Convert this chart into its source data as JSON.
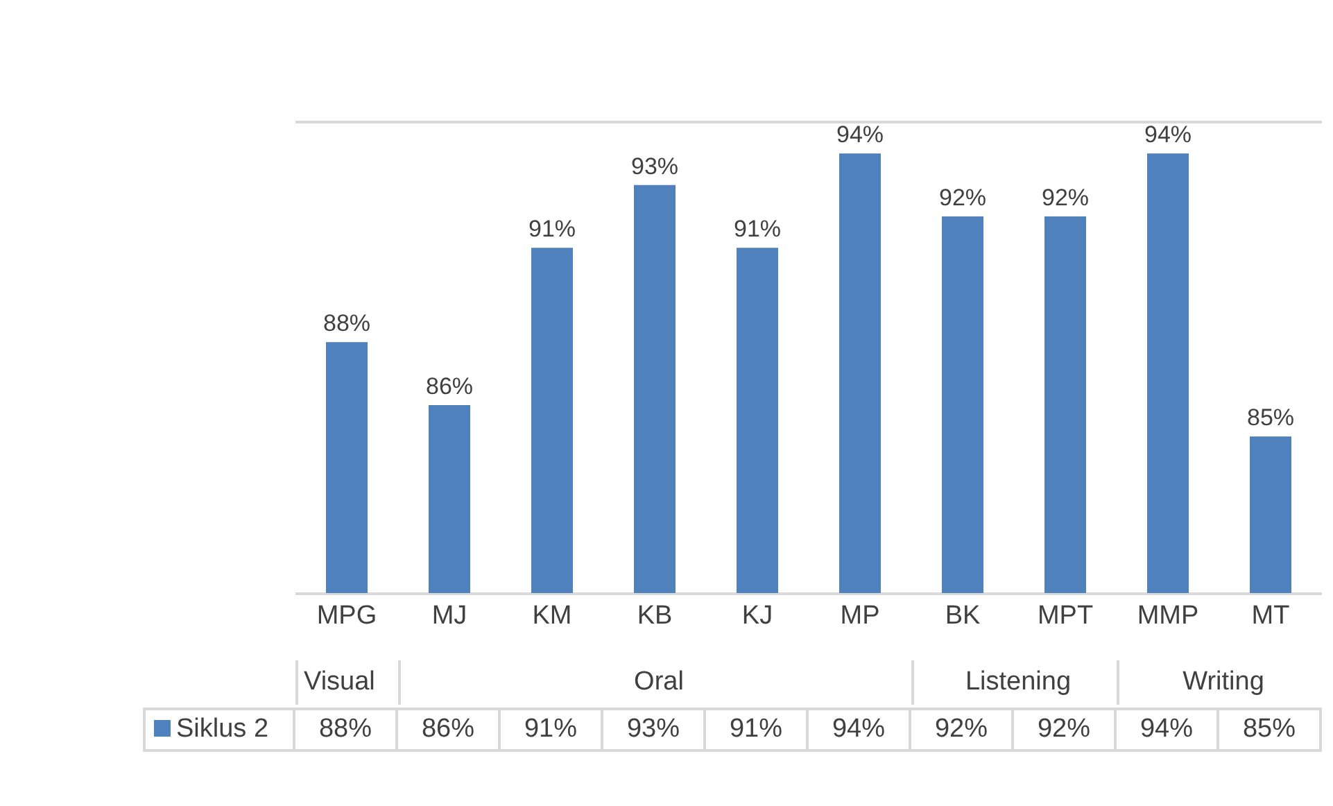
{
  "chart_data": {
    "type": "bar",
    "categories": [
      "MPG",
      "MJ",
      "KM",
      "KB",
      "KJ",
      "MP",
      "BK",
      "MPT",
      "MMP",
      "MT"
    ],
    "series": [
      {
        "name": "Siklus 2",
        "color": "#4f81bd",
        "values": [
          88,
          86,
          91,
          93,
          91,
          94,
          92,
          92,
          94,
          85
        ],
        "value_labels": [
          "88%",
          "86%",
          "91%",
          "93%",
          "91%",
          "94%",
          "92%",
          "92%",
          "94%",
          "85%"
        ]
      }
    ],
    "ylim": [
      80,
      95
    ],
    "tick_labels": "x",
    "grid": "y",
    "legend": "bottom",
    "annotations": [
      "Visual",
      "Oral",
      "Listening",
      "Writing"
    ]
  }
}
